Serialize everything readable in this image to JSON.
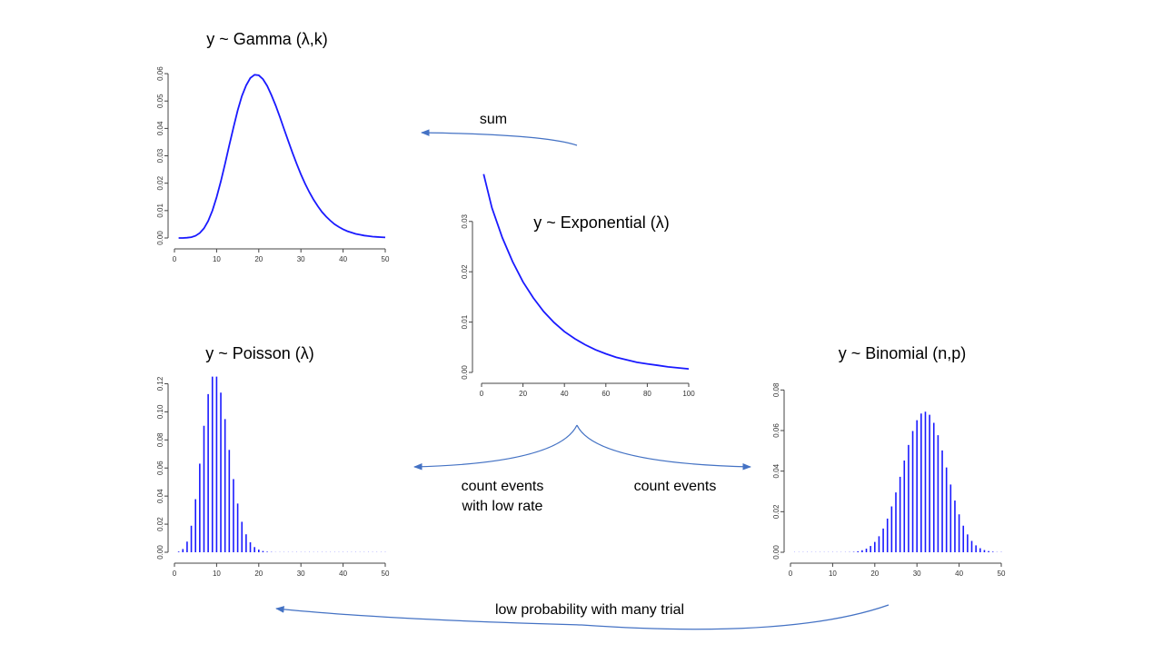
{
  "chart_data": [
    {
      "id": "gamma",
      "type": "line",
      "title": "y ~ Gamma (λ,k)",
      "xlim": [
        0,
        50
      ],
      "ylim": [
        0,
        0.065
      ],
      "xticks": [
        0,
        10,
        20,
        30,
        40,
        50
      ],
      "yticks": [
        0,
        0.01,
        0.02,
        0.03,
        0.04,
        0.05,
        0.06
      ],
      "ytick_labels": [
        "0.00",
        "0.01",
        "0.02",
        "0.03",
        "0.04",
        "0.05",
        "0.06"
      ],
      "color": "#1a1aff",
      "series": [
        {
          "x": [
            1,
            2,
            3,
            4,
            5,
            6,
            7,
            8,
            9,
            10,
            11,
            12,
            13,
            14,
            15,
            16,
            17,
            18,
            19,
            20,
            21,
            22,
            23,
            24,
            25,
            26,
            27,
            28,
            29,
            30,
            31,
            32,
            33,
            34,
            35,
            36,
            37,
            38,
            39,
            40,
            41,
            42,
            43,
            44,
            45,
            46,
            47,
            48,
            49,
            50
          ],
          "y": [
            0,
            0,
            0.0001,
            0.0003,
            0.0008,
            0.0018,
            0.0035,
            0.0062,
            0.01,
            0.0149,
            0.0206,
            0.0271,
            0.0338,
            0.0404,
            0.0466,
            0.0518,
            0.0557,
            0.0584,
            0.0596,
            0.0594,
            0.058,
            0.0555,
            0.0522,
            0.0484,
            0.0442,
            0.0398,
            0.0354,
            0.0311,
            0.027,
            0.0232,
            0.0198,
            0.0167,
            0.014,
            0.0116,
            0.0095,
            0.0078,
            0.0063,
            0.005,
            0.004,
            0.0032,
            0.0025,
            0.002,
            0.0015,
            0.0012,
            0.0009,
            0.0007,
            0.0005,
            0.0004,
            0.0003,
            0.0002
          ]
        }
      ]
    },
    {
      "id": "exponential",
      "type": "line",
      "title": "y ~ Exponential  (λ)",
      "xlim": [
        0,
        100
      ],
      "ylim": [
        0,
        0.037
      ],
      "xticks": [
        0,
        20,
        40,
        60,
        80,
        100
      ],
      "yticks": [
        0,
        0.01,
        0.02,
        0.03
      ],
      "ytick_labels": [
        "0.00",
        "0.01",
        "0.02",
        "0.03"
      ],
      "color": "#1a1aff",
      "series": [
        {
          "x": [
            1,
            5,
            10,
            15,
            20,
            25,
            30,
            35,
            40,
            45,
            50,
            55,
            60,
            65,
            70,
            75,
            80,
            85,
            90,
            95,
            100
          ],
          "y": [
            0.0394,
            0.0327,
            0.0268,
            0.022,
            0.018,
            0.0148,
            0.0121,
            0.0099,
            0.0081,
            0.0067,
            0.0055,
            0.0045,
            0.0037,
            0.003,
            0.0025,
            0.002,
            0.0017,
            0.0014,
            0.0011,
            0.0009,
            0.0007
          ]
        }
      ]
    },
    {
      "id": "poisson",
      "type": "bar",
      "title": "y ~ Poisson (λ)",
      "xlim": [
        0,
        50
      ],
      "ylim": [
        0,
        0.13
      ],
      "xticks": [
        0,
        10,
        20,
        30,
        40,
        50
      ],
      "yticks": [
        0,
        0.02,
        0.04,
        0.06,
        0.08,
        0.1,
        0.12
      ],
      "ytick_labels": [
        "0.00",
        "0.02",
        "0.04",
        "0.06",
        "0.08",
        "0.10",
        "0.12"
      ],
      "color": "#1a1aff",
      "series": [
        {
          "x": [
            1,
            2,
            3,
            4,
            5,
            6,
            7,
            8,
            9,
            10,
            11,
            12,
            13,
            14,
            15,
            16,
            17,
            18,
            19,
            20,
            21,
            22,
            23,
            24,
            25,
            26,
            27,
            28,
            29,
            30,
            31,
            32,
            33,
            34,
            35,
            36,
            37,
            38,
            39,
            40,
            41,
            42,
            43,
            44,
            45,
            46,
            47,
            48,
            49,
            50
          ],
          "y": [
            0.0005,
            0.0023,
            0.0076,
            0.0189,
            0.0378,
            0.0631,
            0.0901,
            0.1126,
            0.1251,
            0.1251,
            0.1137,
            0.0948,
            0.0729,
            0.0521,
            0.0347,
            0.0217,
            0.0128,
            0.0071,
            0.0037,
            0.0019,
            0.0009,
            0.0004,
            0.0002,
            0.0001,
            0,
            0,
            0,
            0,
            0,
            0,
            0,
            0,
            0,
            0,
            0,
            0,
            0,
            0,
            0,
            0,
            0,
            0,
            0,
            0,
            0,
            0,
            0,
            0,
            0,
            0
          ]
        }
      ]
    },
    {
      "id": "binomial",
      "type": "bar",
      "title": "y ~ Binomial (n,p)",
      "xlim": [
        0,
        50
      ],
      "ylim": [
        0,
        0.09
      ],
      "xticks": [
        0,
        10,
        20,
        30,
        40,
        50
      ],
      "yticks": [
        0,
        0.02,
        0.04,
        0.06,
        0.08
      ],
      "ytick_labels": [
        "0.00",
        "0.02",
        "0.04",
        "0.06",
        "0.08"
      ],
      "color": "#1a1aff",
      "series": [
        {
          "x": [
            1,
            2,
            3,
            4,
            5,
            6,
            7,
            8,
            9,
            10,
            11,
            12,
            13,
            14,
            15,
            16,
            17,
            18,
            19,
            20,
            21,
            22,
            23,
            24,
            25,
            26,
            27,
            28,
            29,
            30,
            31,
            32,
            33,
            34,
            35,
            36,
            37,
            38,
            39,
            40,
            41,
            42,
            43,
            44,
            45,
            46,
            47,
            48,
            49,
            50
          ],
          "y": [
            0,
            0,
            0,
            0,
            0,
            0,
            0,
            0,
            0,
            0,
            0,
            0,
            0,
            0.0001,
            0.0002,
            0.0005,
            0.001,
            0.0018,
            0.0031,
            0.0051,
            0.0079,
            0.0117,
            0.0166,
            0.0226,
            0.0295,
            0.0372,
            0.0452,
            0.0529,
            0.0598,
            0.0651,
            0.0684,
            0.0693,
            0.0678,
            0.0638,
            0.0577,
            0.0502,
            0.0418,
            0.0334,
            0.0255,
            0.0187,
            0.0131,
            0.0088,
            0.0056,
            0.0034,
            0.002,
            0.0011,
            0.0006,
            0.0003,
            0.0001,
            0.0001
          ]
        }
      ]
    }
  ],
  "arrows": {
    "sum": "sum",
    "count_low_rate_line1": "count events",
    "count_low_rate_line2": "with low rate",
    "count_events": "count events",
    "low_prob": "low probability with many trial"
  },
  "arrow_color": "#4472c4"
}
